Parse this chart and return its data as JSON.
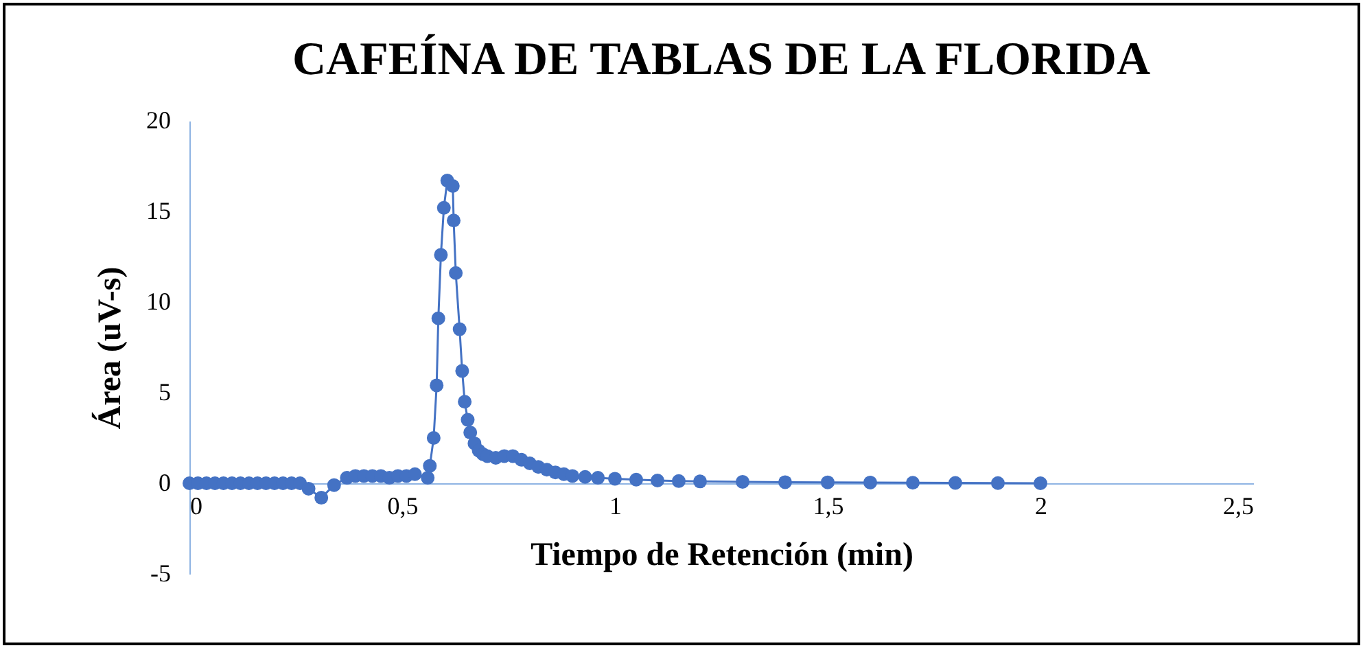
{
  "chart_data": {
    "type": "line",
    "title": "CAFEÍNA DE TABLAS DE LA FLORIDA",
    "xlabel": "Tiempo de Retención (min)",
    "ylabel": "Área (uV-s)",
    "x": [
      0,
      0.02,
      0.04,
      0.06,
      0.08,
      0.1,
      0.12,
      0.14,
      0.16,
      0.18,
      0.2,
      0.22,
      0.24,
      0.26,
      0.28,
      0.31,
      0.34,
      0.37,
      0.39,
      0.41,
      0.43,
      0.45,
      0.47,
      0.49,
      0.51,
      0.53,
      0.56,
      0.565,
      0.574,
      0.581,
      0.585,
      0.591,
      0.598,
      0.606,
      0.619,
      0.621,
      0.626,
      0.635,
      0.641,
      0.647,
      0.654,
      0.66,
      0.67,
      0.68,
      0.69,
      0.7,
      0.72,
      0.74,
      0.76,
      0.78,
      0.8,
      0.82,
      0.84,
      0.86,
      0.88,
      0.9,
      0.93,
      0.96,
      1,
      1.05,
      1.1,
      1.15,
      1.2,
      1.3,
      1.4,
      1.5,
      1.6,
      1.7,
      1.8,
      1.9,
      2
    ],
    "series": [
      {
        "color": "#4472c4",
        "values": [
          0,
          0,
          0,
          0,
          0,
          0,
          0,
          0,
          0,
          0,
          0,
          0,
          0,
          0,
          -0.3,
          -0.8,
          -0.1,
          0.3,
          0.4,
          0.4,
          0.4,
          0.4,
          0.3,
          0.4,
          0.4,
          0.5,
          0.3,
          0.96,
          2.5,
          5.4,
          9.1,
          12.6,
          15.2,
          16.7,
          16.4,
          14.5,
          11.6,
          8.5,
          6.2,
          4.5,
          3.5,
          2.8,
          2.2,
          1.8,
          1.6,
          1.5,
          1.4,
          1.5,
          1.5,
          1.3,
          1.1,
          0.9,
          0.75,
          0.6,
          0.5,
          0.4,
          0.35,
          0.3,
          0.25,
          0.2,
          0.15,
          0.12,
          0.1,
          0.08,
          0.06,
          0.05,
          0.04,
          0.03,
          0.02,
          0.01,
          0
        ]
      }
    ],
    "xlim": [
      0,
      2.5
    ],
    "xticks": [
      0,
      {
        "value": 0.5,
        "label": "0,5"
      },
      1,
      {
        "value": 1.5,
        "label": "1,5"
      },
      2,
      {
        "value": 2.5,
        "label": "2,5"
      }
    ],
    "ylim": [
      -5,
      20
    ],
    "yticks": [
      -5,
      0,
      5,
      10,
      15,
      20
    ],
    "grid": false,
    "marker": "circle"
  }
}
